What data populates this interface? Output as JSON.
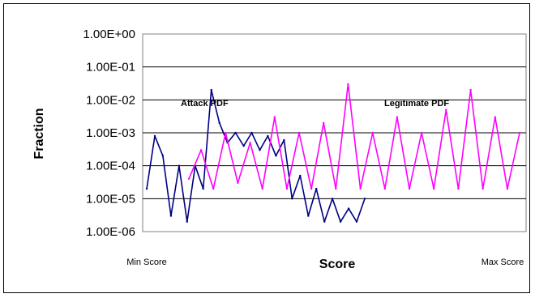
{
  "chart_data": {
    "type": "line",
    "title": "",
    "xlabel": "Score",
    "ylabel": "Fraction",
    "y_scale": "log",
    "ylim": [
      1e-06,
      1
    ],
    "y_ticks": [
      1e-06,
      1e-05,
      0.0001,
      0.001,
      0.01,
      0.1,
      1
    ],
    "y_tick_labels": [
      "1.00E-06",
      "1.00E-05",
      "1.00E-04",
      "1.00E-03",
      "1.00E-02",
      "1.00E-01",
      "1.00E+00"
    ],
    "x_tick_labels": [
      "Min Score",
      "Max Score"
    ],
    "grid": "horizontal",
    "legend": "none",
    "annotations": [
      "Attack PDF",
      "Legitimate PDF"
    ],
    "series": [
      {
        "name": "Attack PDF",
        "color": "#000080",
        "values": [
          2e-05,
          0.0008,
          0.0002,
          3e-06,
          0.0001,
          2e-06,
          0.0001,
          2e-05,
          0.02,
          0.002,
          0.0005,
          0.001,
          0.0004,
          0.001,
          0.0003,
          0.0008,
          0.0002,
          0.0006,
          1e-05,
          5e-05,
          3e-06,
          2e-05,
          2e-06,
          1e-05,
          2e-06,
          5e-06,
          2e-06,
          1e-05
        ]
      },
      {
        "name": "Legitimate PDF",
        "color": "#ff00ff",
        "values": [
          4e-05,
          0.0003,
          2e-05,
          0.001,
          3e-05,
          0.0005,
          2e-05,
          0.003,
          2e-05,
          0.001,
          2e-05,
          0.002,
          2e-05,
          0.03,
          2e-05,
          0.001,
          2e-05,
          0.003,
          2e-05,
          0.001,
          2e-05,
          0.005,
          2e-05,
          0.02,
          2e-05,
          0.003,
          2e-05,
          0.001
        ]
      }
    ]
  }
}
